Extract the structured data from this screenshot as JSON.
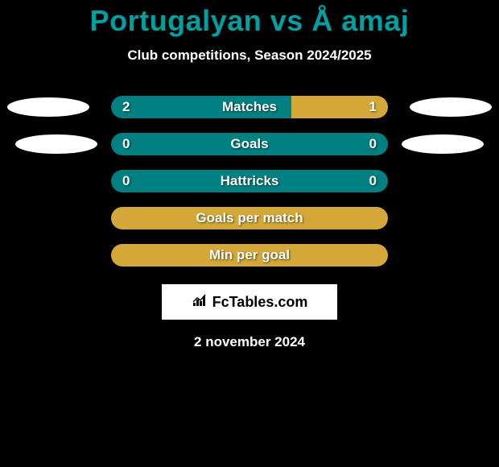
{
  "title": "Portugalyan vs Å amaj",
  "subtitle": "Club competitions, Season 2024/2025",
  "colors": {
    "title_color": "#00a0a0",
    "accent_teal": "#008080",
    "accent_amber": "#d4a838",
    "accent_mix_left": "#008080",
    "accent_mix_right": "#d4a838",
    "background": "#000000",
    "text": "#ffffff"
  },
  "stats": [
    {
      "label": "Matches",
      "left_value": "2",
      "right_value": "1",
      "left_color": "#008080",
      "right_color": "#d4a838",
      "left_width": 65,
      "right_width": 35
    },
    {
      "label": "Goals",
      "left_value": "0",
      "right_value": "0",
      "full_color": "#008080",
      "full": true
    },
    {
      "label": "Hattricks",
      "left_value": "0",
      "right_value": "0",
      "full_color": "#008080",
      "full": true
    },
    {
      "label": "Goals per match",
      "left_value": "",
      "right_value": "",
      "full_color": "#d4a838",
      "full": true
    },
    {
      "label": "Min per goal",
      "left_value": "",
      "right_value": "",
      "full_color": "#d4a838",
      "full": true
    }
  ],
  "logo_text": "FcTables.com",
  "date": "2 november 2024"
}
